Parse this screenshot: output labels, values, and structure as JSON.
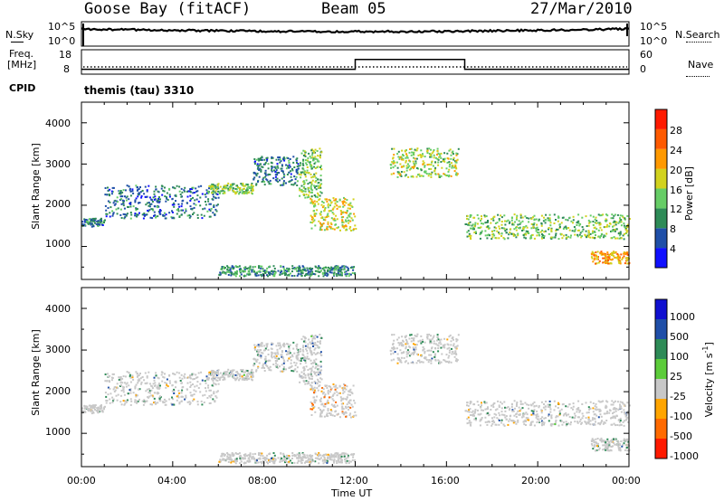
{
  "header": {
    "station": "Goose Bay (fitACF)",
    "beam": "Beam 05",
    "date": "27/Mar/2010"
  },
  "noise": {
    "left_label": "N.Sky",
    "right_label": "N.Search",
    "left_ticks": [
      "10^5",
      "10^0"
    ],
    "right_ticks": [
      "10^5",
      "10^0"
    ]
  },
  "freq": {
    "left_label_1": "Freq.",
    "left_label_2": "[MHz]",
    "right_label": "Nave",
    "left_ticks": [
      "18",
      "8"
    ],
    "right_ticks": [
      "60",
      "0"
    ]
  },
  "cpid": {
    "label": "CPID",
    "value": "themis (tau) 3310"
  },
  "power_panel": {
    "ylabel": "Slant Range [km]",
    "yticks": [
      "1000",
      "2000",
      "3000",
      "4000"
    ],
    "colorbar_label": "Power [dB]",
    "colorbar_ticks": [
      "4",
      "8",
      "12",
      "16",
      "20",
      "24",
      "28"
    ],
    "colorbar_colors": [
      "#1010ff",
      "#1f4fa8",
      "#2e8b57",
      "#66cd66",
      "#d2d21e",
      "#ff9900",
      "#ff5a00",
      "#ff1a00"
    ]
  },
  "velocity_panel": {
    "ylabel": "Slant Range [km]",
    "yticks": [
      "1000",
      "2000",
      "3000",
      "4000"
    ],
    "colorbar_label": "Velocity [m s",
    "colorbar_label_sup": "-1",
    "colorbar_label_end": "]",
    "colorbar_ticks": [
      "1000",
      "500",
      "100",
      "25",
      "-25",
      "-100",
      "-500",
      "-1000"
    ],
    "colorbar_colors": [
      "#1010d0",
      "#1f4fa8",
      "#2e8b57",
      "#5ccc3a",
      "#c8c8c8",
      "#ffa500",
      "#ff6a00",
      "#ff1a00"
    ]
  },
  "xaxis": {
    "label": "Time UT",
    "ticks": [
      "00:00",
      "04:00",
      "08:00",
      "12:00",
      "16:00",
      "20:00",
      "00:00"
    ]
  },
  "chart_data": {
    "type": "heatmap",
    "title": "Goose Bay (fitACF)",
    "subtitle": "Beam 05 27/Mar/2010",
    "xlabel": "Time UT",
    "ylabel": "Slant Range [km]",
    "x_range_hours": [
      0,
      24
    ],
    "ylim": [
      200,
      4500
    ],
    "freq_steps": [
      {
        "t0": 0,
        "t1": 12,
        "mhz": 10
      },
      {
        "t0": 12,
        "t1": 16.8,
        "mhz": 14
      },
      {
        "t0": 16.8,
        "t1": 24,
        "mhz": 10
      }
    ],
    "freq_range_mhz": [
      8,
      18
    ],
    "noise_level": "near 10^5 throughout",
    "echo_regions": [
      {
        "t0": 0.0,
        "t1": 1.0,
        "r0": 1500,
        "r1": 1700,
        "power": 8,
        "velocity": 25
      },
      {
        "t0": 1.0,
        "t1": 6.0,
        "r0": 1700,
        "r1": 2500,
        "power": 8,
        "velocity": 25
      },
      {
        "t0": 5.5,
        "t1": 7.5,
        "r0": 2300,
        "r1": 2550,
        "power": 14,
        "velocity": 25
      },
      {
        "t0": 7.5,
        "t1": 9.5,
        "r0": 2500,
        "r1": 3200,
        "power": 8,
        "velocity": 25
      },
      {
        "t0": 9.5,
        "t1": 10.5,
        "r0": 2200,
        "r1": 3400,
        "power": 14,
        "velocity": 100
      },
      {
        "t0": 10.0,
        "t1": 12.0,
        "r0": 1400,
        "r1": 2200,
        "power": 18,
        "velocity": -100
      },
      {
        "t0": 13.5,
        "t1": 16.5,
        "r0": 2700,
        "r1": 3400,
        "power": 16,
        "velocity": 25
      },
      {
        "t0": 16.8,
        "t1": 24.0,
        "r0": 1200,
        "r1": 1800,
        "power": 14,
        "velocity": 25
      },
      {
        "t0": 22.3,
        "t1": 24.0,
        "r0": 600,
        "r1": 900,
        "power": 22,
        "velocity": 25
      },
      {
        "t0": 6.0,
        "t1": 12.0,
        "r0": 300,
        "r1": 550,
        "power": 10,
        "velocity": 25
      }
    ]
  }
}
